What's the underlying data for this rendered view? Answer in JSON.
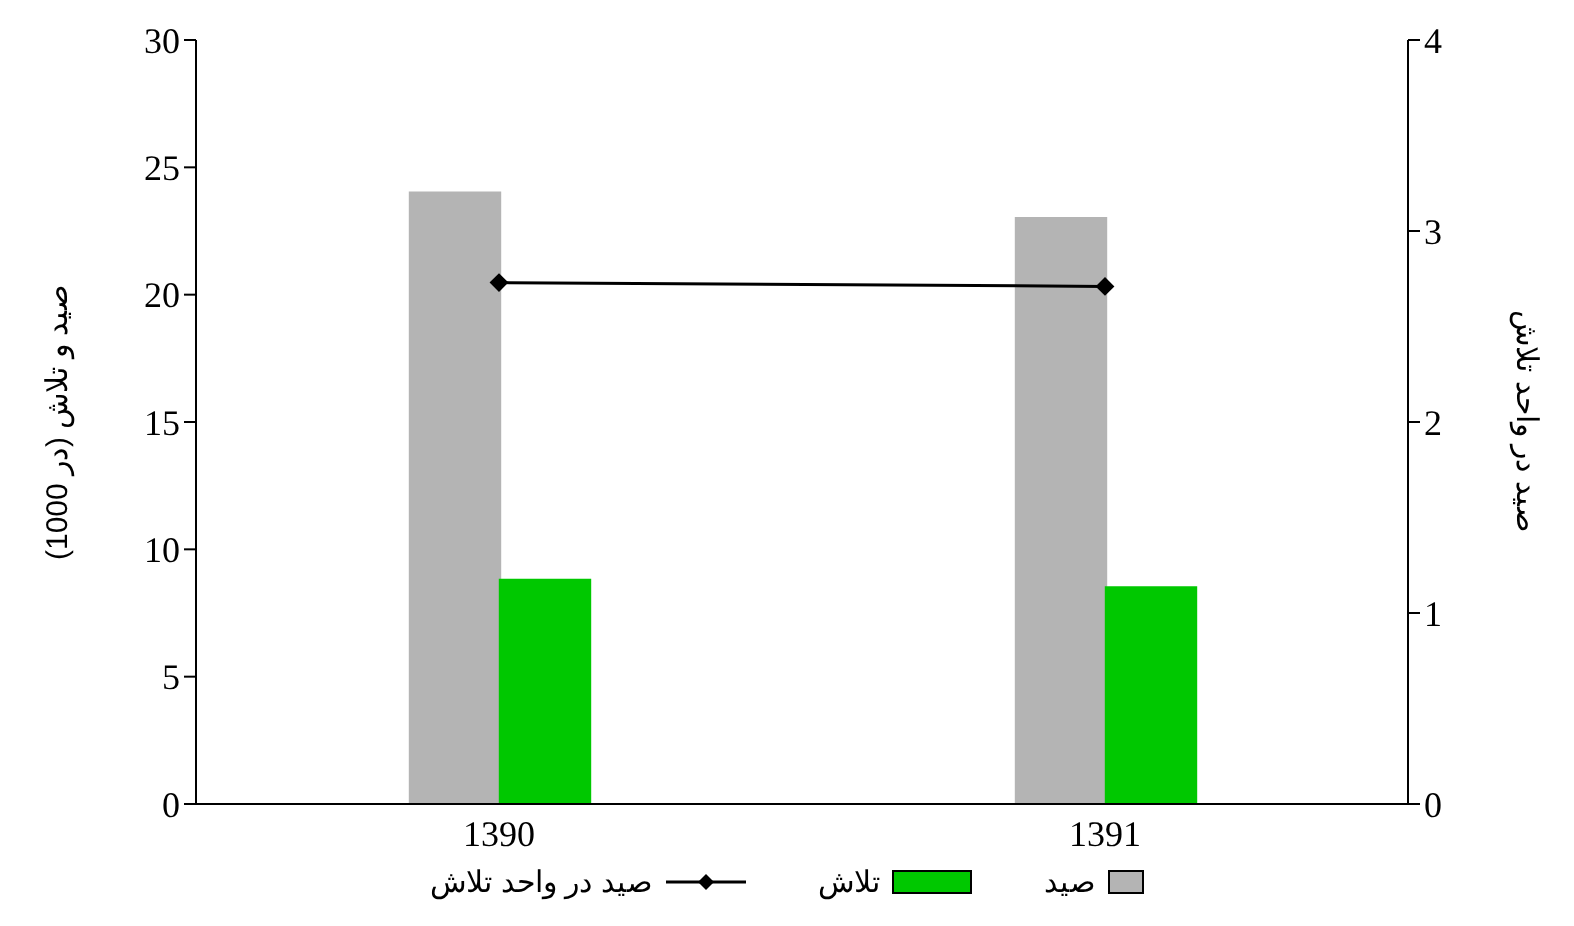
{
  "chart_data": {
    "type": "bar",
    "categories": [
      "1390",
      "1391"
    ],
    "ylabel": "صید و تلاش (در 1000)",
    "y2label": "صید در واحد تلاش",
    "series": [
      {
        "name": "صید",
        "color": "#b4b4b4",
        "values": [
          24,
          23
        ]
      },
      {
        "name": "تلاش",
        "color": "#00c800",
        "values": [
          8.8,
          8.5
        ]
      },
      {
        "name": "صید در واحد تلاش",
        "type": "line",
        "axis": "y2",
        "color": "#000000",
        "marker": "diamond",
        "values": [
          2.73,
          2.71
        ]
      }
    ],
    "ylim": [
      0,
      30
    ],
    "yticks": [
      0,
      5,
      10,
      15,
      20,
      25,
      30
    ],
    "y2lim": [
      0,
      4
    ],
    "y2ticks": [
      0,
      1,
      2,
      3,
      4
    ],
    "legend": "bottom",
    "grid": false
  }
}
